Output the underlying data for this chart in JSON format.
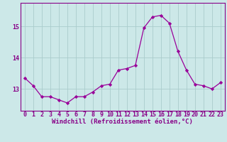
{
  "x": [
    0,
    1,
    2,
    3,
    4,
    5,
    6,
    7,
    8,
    9,
    10,
    11,
    12,
    13,
    14,
    15,
    16,
    17,
    18,
    19,
    20,
    21,
    22,
    23
  ],
  "y": [
    13.35,
    13.1,
    12.75,
    12.75,
    12.65,
    12.55,
    12.75,
    12.75,
    12.9,
    13.1,
    13.15,
    13.6,
    13.65,
    13.75,
    14.95,
    15.3,
    15.35,
    15.1,
    14.2,
    13.6,
    13.15,
    13.1,
    13.0,
    13.2
  ],
  "line_color": "#990099",
  "marker": "D",
  "marker_size": 2.2,
  "bg_color": "#cce8e8",
  "grid_color": "#aacccc",
  "xlabel": "Windchill (Refroidissement éolien,°C)",
  "xlim": [
    -0.5,
    23.5
  ],
  "ylim": [
    12.3,
    15.75
  ],
  "yticks": [
    13,
    14,
    15
  ],
  "xticks": [
    0,
    1,
    2,
    3,
    4,
    5,
    6,
    7,
    8,
    9,
    10,
    11,
    12,
    13,
    14,
    15,
    16,
    17,
    18,
    19,
    20,
    21,
    22,
    23
  ],
  "tick_color": "#880088",
  "label_color": "#880088",
  "label_fontsize": 6.5,
  "tick_fontsize": 6.0,
  "spine_color": "#880088"
}
